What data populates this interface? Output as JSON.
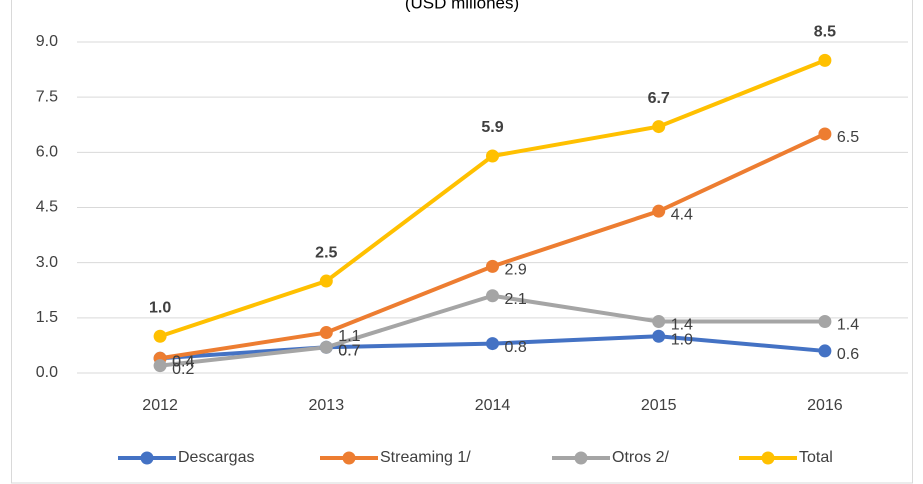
{
  "chart_data": {
    "type": "line",
    "subtitle": "(USD millones)",
    "categories": [
      "2012",
      "2013",
      "2014",
      "2015",
      "2016"
    ],
    "series": [
      {
        "name": "Descargas",
        "color": "#4472c4",
        "values": [
          0.4,
          0.7,
          0.8,
          1.0,
          0.6
        ],
        "value_labels": [
          "0.4",
          "0.7",
          "0.8",
          "1.0",
          "0.6"
        ]
      },
      {
        "name": "Streaming 1/",
        "color": "#ed7d31",
        "values": [
          0.4,
          1.1,
          2.9,
          4.4,
          6.5
        ],
        "value_labels": [
          "0.4",
          "1.1",
          "2.9",
          "4.4",
          "6.5"
        ]
      },
      {
        "name": "Otros 2/",
        "color": "#a5a5a5",
        "values": [
          0.2,
          0.7,
          2.1,
          1.4,
          1.4
        ],
        "value_labels": [
          "0.2",
          "0.7",
          "2.1",
          "1.4",
          "1.4"
        ]
      },
      {
        "name": "Total",
        "color": "#ffc000",
        "values": [
          1.0,
          2.5,
          5.9,
          6.7,
          8.5
        ],
        "value_labels": [
          "1.0",
          "2.5",
          "5.9",
          "6.7",
          "8.5"
        ]
      }
    ],
    "ylim": [
      0,
      9
    ],
    "yticks": [
      {
        "value": 0,
        "label": "0.0"
      },
      1.5,
      {
        "value": 3,
        "label": "3.0"
      },
      4.5,
      {
        "value": 6,
        "label": "6.0"
      },
      7.5,
      {
        "value": 9,
        "label": "9.0"
      }
    ],
    "grid": true,
    "legend": "bottom"
  }
}
